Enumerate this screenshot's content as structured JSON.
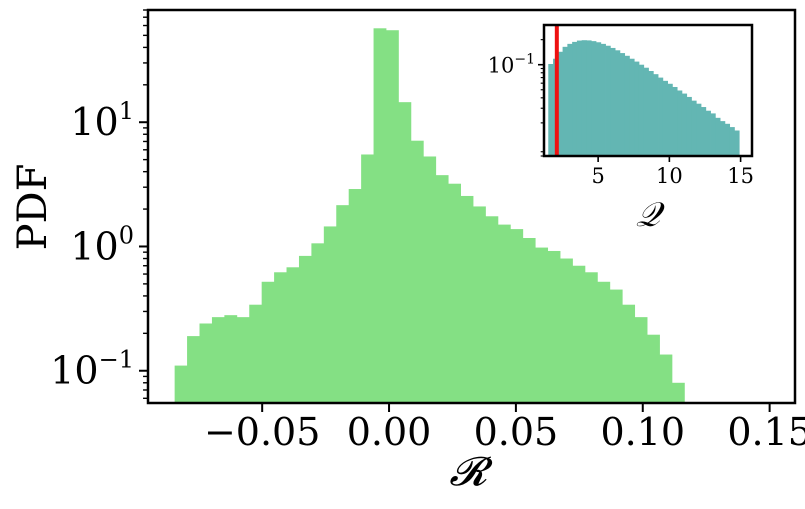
{
  "chart_data": [
    {
      "type": "histogram",
      "xlabel": "𝓡",
      "ylabel": "PDF",
      "yscale": "log",
      "xlim": [
        -0.095,
        0.16
      ],
      "ylim": [
        0.055,
        80
      ],
      "xticks": [
        -0.05,
        0.0,
        0.05,
        0.1,
        0.15
      ],
      "xtick_labels": [
        "−0.05",
        "0.00",
        "0.05",
        "0.10",
        "0.15"
      ],
      "yticks": [
        10,
        1,
        0.1
      ],
      "ytick_labels": [
        "10",
        "10",
        "10"
      ],
      "ytick_exponents": [
        "1",
        "0",
        "−1"
      ],
      "color": "#84e084",
      "bin_edges_start": -0.0845,
      "bin_width": 0.0049,
      "values": [
        0.11,
        0.19,
        0.24,
        0.27,
        0.28,
        0.27,
        0.34,
        0.52,
        0.62,
        0.68,
        0.84,
        1.06,
        1.45,
        2.15,
        2.9,
        5.5,
        57,
        55,
        14.5,
        7.1,
        5.3,
        3.75,
        3.2,
        2.55,
        2.1,
        1.75,
        1.5,
        1.38,
        1.17,
        0.98,
        0.92,
        0.8,
        0.7,
        0.62,
        0.52,
        0.45,
        0.34,
        0.27,
        0.195,
        0.135,
        0.08
      ],
      "grid": false
    },
    {
      "type": "histogram",
      "inset": true,
      "xlabel": "𝒬",
      "ylabel": "",
      "yscale": "log",
      "xlim": [
        1.2,
        15.8
      ],
      "ylim": [
        0.008,
        0.3
      ],
      "xticks": [
        5,
        10,
        15
      ],
      "xtick_labels": [
        "5",
        "10",
        "15"
      ],
      "yticks": [
        0.1
      ],
      "ytick_labels": [
        "10"
      ],
      "ytick_exponents": [
        "−1"
      ],
      "color": "#63b6b3",
      "bin_edges_start": 1.5,
      "bin_width": 0.335,
      "values": [
        0.102,
        0.118,
        0.143,
        0.164,
        0.178,
        0.188,
        0.195,
        0.197,
        0.196,
        0.192,
        0.186,
        0.178,
        0.169,
        0.159,
        0.149,
        0.138,
        0.128,
        0.118,
        0.109,
        0.1,
        0.092,
        0.084,
        0.077,
        0.07,
        0.064,
        0.059,
        0.054,
        0.049,
        0.045,
        0.041,
        0.037,
        0.034,
        0.031,
        0.028,
        0.026,
        0.023,
        0.021,
        0.0195,
        0.0178,
        0.0162
      ],
      "marker_line": {
        "x": 2.1,
        "color": "#ee1111"
      },
      "grid": false
    }
  ]
}
